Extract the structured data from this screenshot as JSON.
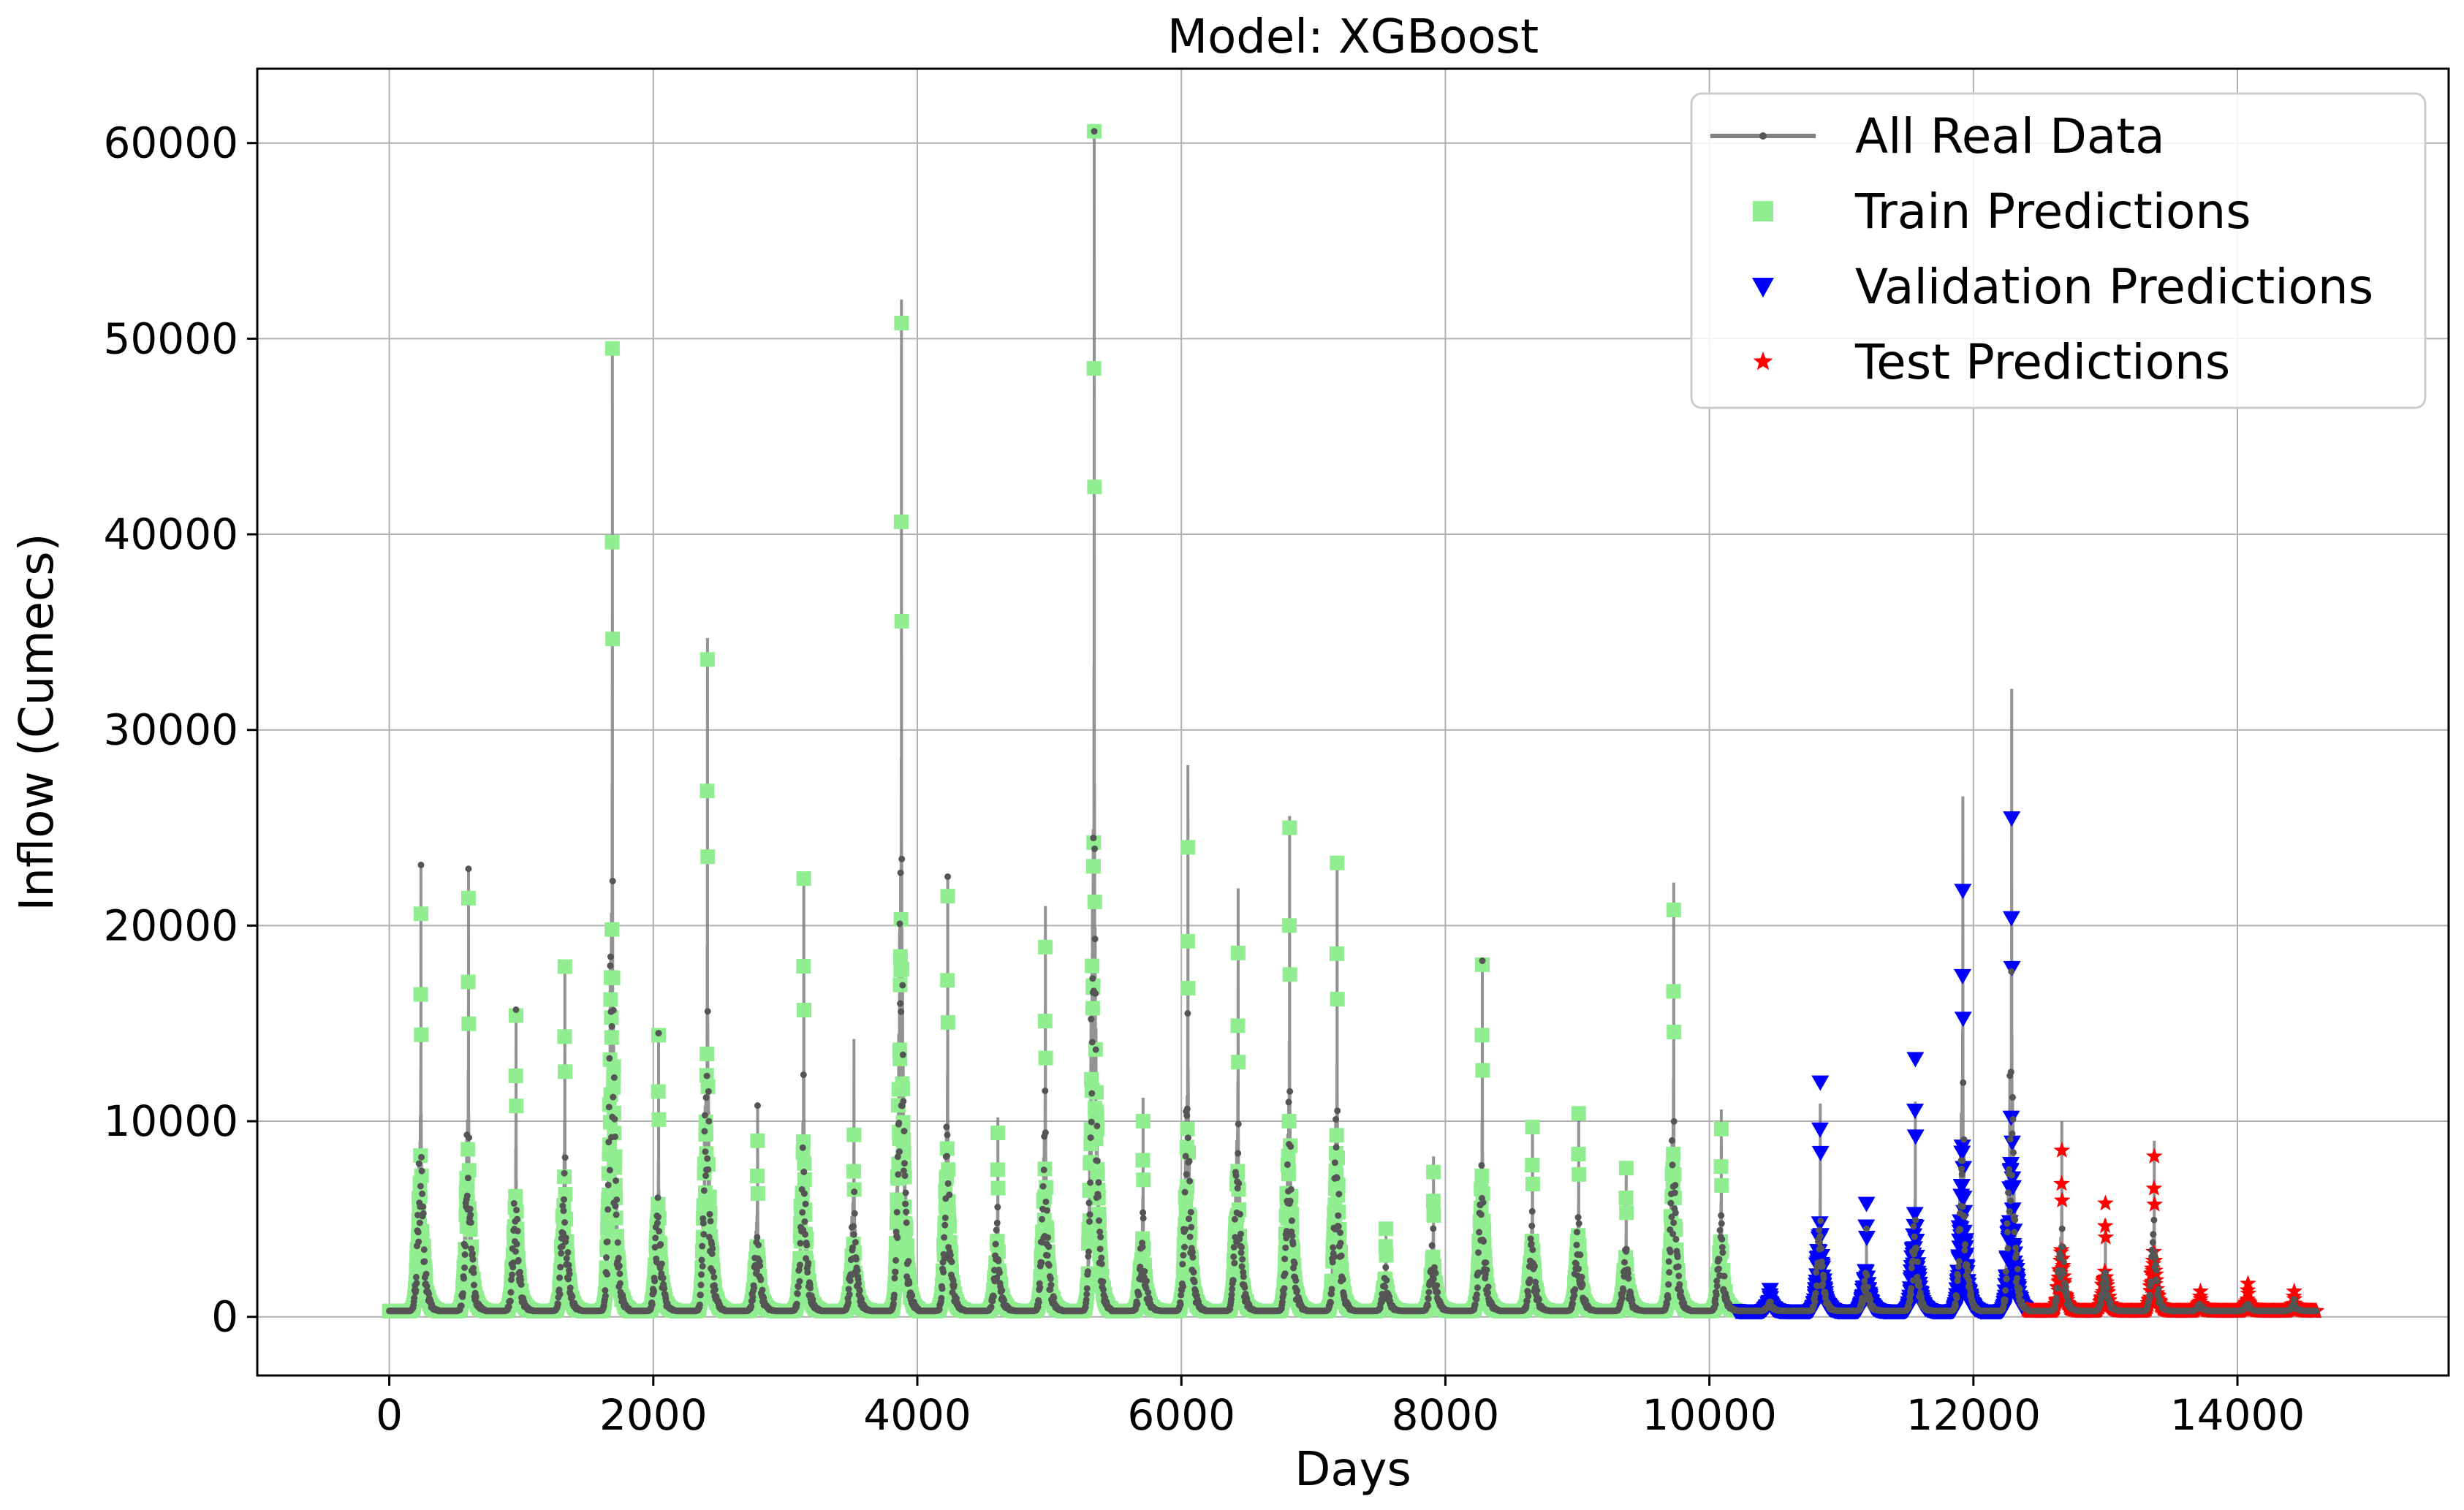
{
  "chart_data": {
    "type": "line",
    "title": "Model: XGBoost",
    "xlabel": "Days",
    "ylabel": "Inflow (Cumecs)",
    "xlim": [
      -1000,
      15600
    ],
    "ylim": [
      -3000,
      63800
    ],
    "xticks": [
      0,
      2000,
      4000,
      6000,
      8000,
      10000,
      12000,
      14000
    ],
    "yticks": [
      0,
      10000,
      20000,
      30000,
      40000,
      50000,
      60000
    ],
    "grid": true,
    "legend_position": "top-right",
    "period_days": 365,
    "split_days": [
      10200,
      12400
    ],
    "total_days": 14600,
    "baseflow": 300,
    "seasonal_peaks": [
      {
        "day": 240,
        "real": 23100,
        "pred": 20600
      },
      {
        "day": 600,
        "real": 22900,
        "pred": 21400
      },
      {
        "day": 960,
        "real": 15700,
        "pred": 15400
      },
      {
        "day": 1330,
        "real": 18100,
        "pred": 17900
      },
      {
        "day": 1690,
        "real": 49500,
        "pred": 49500
      },
      {
        "day": 2040,
        "real": 14500,
        "pred": 14400
      },
      {
        "day": 2410,
        "real": 34700,
        "pred": 33600
      },
      {
        "day": 2790,
        "real": 10800,
        "pred": 9000
      },
      {
        "day": 3140,
        "real": 22500,
        "pred": 22400
      },
      {
        "day": 3520,
        "real": 14200,
        "pred": 9300
      },
      {
        "day": 3880,
        "real": 52000,
        "pred": 50800
      },
      {
        "day": 4230,
        "real": 22500,
        "pred": 21500
      },
      {
        "day": 4610,
        "real": 10200,
        "pred": 9400
      },
      {
        "day": 4970,
        "real": 21000,
        "pred": 18900
      },
      {
        "day": 5340,
        "real": 60600,
        "pred": 60600
      },
      {
        "day": 5710,
        "real": 11200,
        "pred": 10000
      },
      {
        "day": 6050,
        "real": 28200,
        "pred": 24000
      },
      {
        "day": 6430,
        "real": 21900,
        "pred": 18600
      },
      {
        "day": 6820,
        "real": 25600,
        "pred": 25000
      },
      {
        "day": 7180,
        "real": 23400,
        "pred": 23200
      },
      {
        "day": 7550,
        "real": 4600,
        "pred": 4500
      },
      {
        "day": 7910,
        "real": 8200,
        "pred": 7400
      },
      {
        "day": 8280,
        "real": 18200,
        "pred": 18000
      },
      {
        "day": 8660,
        "real": 9800,
        "pred": 9700
      },
      {
        "day": 9010,
        "real": 10600,
        "pred": 10400
      },
      {
        "day": 9370,
        "real": 7700,
        "pred": 7600
      },
      {
        "day": 9730,
        "real": 22200,
        "pred": 20800
      },
      {
        "day": 10090,
        "real": 10600,
        "pred": 9600
      },
      {
        "day": 10460,
        "real": 1200,
        "pred": 1400
      },
      {
        "day": 10840,
        "real": 10900,
        "pred": 12000
      },
      {
        "day": 11190,
        "real": 4500,
        "pred": 5800
      },
      {
        "day": 11560,
        "real": 11000,
        "pred": 13200
      },
      {
        "day": 11920,
        "real": 26600,
        "pred": 21800
      },
      {
        "day": 12290,
        "real": 32100,
        "pred": 25500
      },
      {
        "day": 12670,
        "real": 10000,
        "pred": 8500
      },
      {
        "day": 13000,
        "real": 5000,
        "pred": 5800
      },
      {
        "day": 13370,
        "real": 9000,
        "pred": 8200
      },
      {
        "day": 13720,
        "real": 900,
        "pred": 1300
      },
      {
        "day": 14080,
        "real": 900,
        "pred": 1700
      },
      {
        "day": 14430,
        "real": 900,
        "pred": 1300
      }
    ],
    "series": [
      {
        "name": "All Real Data",
        "color": "#808080",
        "marker_color": "#555555",
        "marker": "point-line"
      },
      {
        "name": "Train Predictions",
        "color": "#90ee90",
        "marker": "square"
      },
      {
        "name": "Validation Predictions",
        "color": "#0000ff",
        "marker": "triangle-down"
      },
      {
        "name": "Test Predictions",
        "color": "#ff0000",
        "marker": "star"
      }
    ]
  }
}
